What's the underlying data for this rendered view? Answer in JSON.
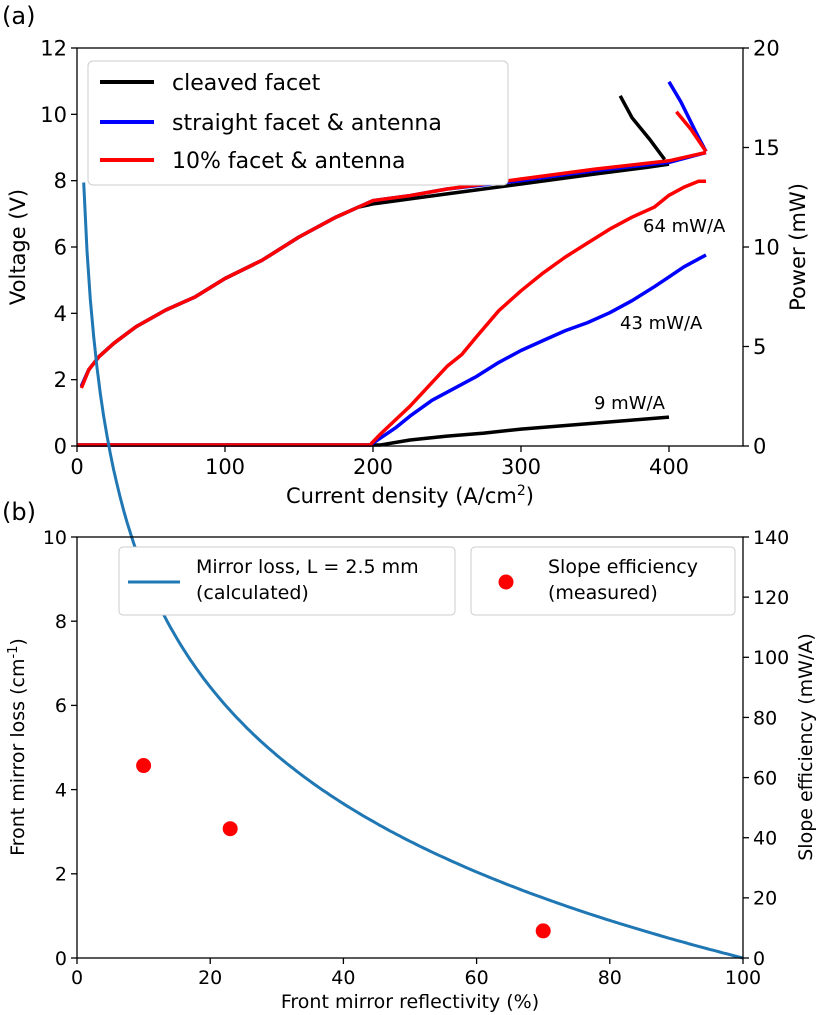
{
  "chart_data": [
    {
      "type": "line",
      "panel_label": "(a)",
      "xlabel": "Current density (A/cm",
      "xlabel_sup": "2",
      "xlabel_end": ")",
      "ylabel_left": "Voltage (V)",
      "ylabel_right": "Power (mW)",
      "xlim": [
        0,
        450
      ],
      "ylim_left": [
        0,
        12
      ],
      "ylim_right": [
        0,
        20
      ],
      "x_ticks": [
        0,
        100,
        200,
        300,
        400
      ],
      "y_ticks_left": [
        0,
        2,
        4,
        6,
        8,
        10,
        12
      ],
      "y_ticks_right": [
        0,
        5,
        10,
        15,
        20
      ],
      "legend": [
        {
          "label": "cleaved facet",
          "color": "#000000"
        },
        {
          "label": "straight facet & antenna",
          "color": "#0000ff"
        },
        {
          "label": "10% facet & antenna",
          "color": "#ff0000"
        }
      ],
      "annotations": [
        "64 mW/A",
        "43 mW/A",
        "9 mW/A"
      ],
      "series": [
        {
          "name": "cleaved facet (voltage)",
          "axis": "left",
          "color": "#000000",
          "points": [
            [
              3,
              1.8
            ],
            [
              8,
              2.3
            ],
            [
              15,
              2.7
            ],
            [
              25,
              3.1
            ],
            [
              40,
              3.6
            ],
            [
              60,
              4.1
            ],
            [
              80,
              4.5
            ],
            [
              100,
              5.05
            ],
            [
              125,
              5.6
            ],
            [
              150,
              6.3
            ],
            [
              175,
              6.9
            ],
            [
              190,
              7.2
            ],
            [
              200,
              7.3
            ],
            [
              225,
              7.45
            ],
            [
              250,
              7.6
            ],
            [
              300,
              7.9
            ],
            [
              350,
              8.2
            ],
            [
              385,
              8.4
            ],
            [
              400,
              8.5
            ]
          ]
        },
        {
          "name": "straight facet & antenna (voltage)",
          "axis": "left",
          "color": "#0000ff",
          "points": [
            [
              3,
              1.8
            ],
            [
              8,
              2.3
            ],
            [
              15,
              2.7
            ],
            [
              25,
              3.1
            ],
            [
              40,
              3.6
            ],
            [
              60,
              4.1
            ],
            [
              80,
              4.5
            ],
            [
              100,
              5.05
            ],
            [
              125,
              5.6
            ],
            [
              150,
              6.3
            ],
            [
              175,
              6.9
            ],
            [
              190,
              7.2
            ],
            [
              200,
              7.4
            ],
            [
              225,
              7.55
            ],
            [
              250,
              7.75
            ],
            [
              300,
              8.0
            ],
            [
              350,
              8.3
            ],
            [
              400,
              8.55
            ],
            [
              425,
              8.85
            ]
          ]
        },
        {
          "name": "10% facet & antenna (voltage)",
          "axis": "left",
          "color": "#ff0000",
          "points": [
            [
              3,
              1.75
            ],
            [
              8,
              2.3
            ],
            [
              15,
              2.7
            ],
            [
              25,
              3.1
            ],
            [
              40,
              3.6
            ],
            [
              60,
              4.1
            ],
            [
              80,
              4.5
            ],
            [
              100,
              5.05
            ],
            [
              125,
              5.6
            ],
            [
              150,
              6.3
            ],
            [
              175,
              6.9
            ],
            [
              190,
              7.2
            ],
            [
              200,
              7.4
            ],
            [
              225,
              7.55
            ],
            [
              250,
              7.75
            ],
            [
              300,
              8.05
            ],
            [
              350,
              8.35
            ],
            [
              400,
              8.6
            ],
            [
              425,
              8.85
            ]
          ]
        },
        {
          "name": "cleaved facet (power)",
          "axis": "right",
          "color": "#000000",
          "points": [
            [
              0,
              0.05
            ],
            [
              195,
              0.05
            ],
            [
              205,
              0.05
            ],
            [
              225,
              0.3
            ],
            [
              250,
              0.5
            ],
            [
              275,
              0.65
            ],
            [
              300,
              0.85
            ],
            [
              325,
              1.0
            ],
            [
              350,
              1.15
            ],
            [
              375,
              1.3
            ],
            [
              400,
              1.45
            ]
          ]
        },
        {
          "name": "straight facet & antenna (power)",
          "axis": "right",
          "color": "#0000ff",
          "points": [
            [
              0,
              0.05
            ],
            [
              198,
              0.05
            ],
            [
              205,
              0.4
            ],
            [
              215,
              0.9
            ],
            [
              225,
              1.5
            ],
            [
              240,
              2.3
            ],
            [
              255,
              2.9
            ],
            [
              270,
              3.5
            ],
            [
              285,
              4.2
            ],
            [
              300,
              4.8
            ],
            [
              315,
              5.3
            ],
            [
              330,
              5.8
            ],
            [
              345,
              6.2
            ],
            [
              360,
              6.7
            ],
            [
              375,
              7.3
            ],
            [
              390,
              8.0
            ],
            [
              400,
              8.5
            ],
            [
              410,
              9.0
            ],
            [
              420,
              9.4
            ],
            [
              425,
              9.6
            ]
          ]
        },
        {
          "name": "10% facet & antenna (power)",
          "axis": "right",
          "color": "#ff0000",
          "points": [
            [
              0,
              0.05
            ],
            [
              198,
              0.05
            ],
            [
              205,
              0.6
            ],
            [
              215,
              1.3
            ],
            [
              225,
              2.0
            ],
            [
              240,
              3.2
            ],
            [
              250,
              4.0
            ],
            [
              260,
              4.6
            ],
            [
              270,
              5.5
            ],
            [
              285,
              6.8
            ],
            [
              300,
              7.8
            ],
            [
              315,
              8.7
            ],
            [
              330,
              9.5
            ],
            [
              345,
              10.2
            ],
            [
              360,
              10.9
            ],
            [
              375,
              11.5
            ],
            [
              390,
              12.0
            ],
            [
              400,
              12.6
            ],
            [
              410,
              13.0
            ],
            [
              420,
              13.3
            ],
            [
              425,
              13.3
            ]
          ]
        }
      ],
      "rollover": [
        {
          "color": "#000000",
          "points": [
            [
              367,
              17.6
            ],
            [
              375,
              16.5
            ],
            [
              387,
              15.4
            ],
            [
              397,
              14.4
            ]
          ]
        },
        {
          "color": "#0000ff",
          "points": [
            [
              400,
              18.3
            ],
            [
              408,
              17.3
            ],
            [
              418,
              15.8
            ],
            [
              425,
              14.8
            ]
          ]
        },
        {
          "color": "#ff0000",
          "points": [
            [
              405,
              16.8
            ],
            [
              415,
              15.9
            ],
            [
              425,
              14.8
            ]
          ]
        }
      ]
    },
    {
      "type": "line+scatter",
      "panel_label": "(b)",
      "xlabel": "Front mirror reflectivity (%)",
      "ylabel_left": "Front mirror loss (cm",
      "ylabel_left_sup": "-1",
      "ylabel_left_end": ")",
      "ylabel_right": "Slope efficiency (mW/A)",
      "xlim": [
        0,
        100
      ],
      "ylim_left": [
        0,
        10
      ],
      "ylim_right": [
        0,
        140
      ],
      "x_ticks": [
        0,
        20,
        40,
        60,
        80,
        100
      ],
      "y_ticks_left": [
        0,
        2,
        4,
        6,
        8,
        10
      ],
      "y_ticks_right": [
        0,
        20,
        40,
        60,
        80,
        100,
        120,
        140
      ],
      "legend": [
        {
          "label": "Mirror loss, L = 2.5 mm",
          "label2": "(calculated)",
          "color": "#1f77b4",
          "marker": "line"
        },
        {
          "label": "Slope efficiency",
          "label2": "(measured)",
          "color": "#ff0000",
          "marker": "dot"
        }
      ],
      "mirror_loss_curve": {
        "formula": "-ln(R)/L",
        "L_cm": 0.25,
        "x_start": 1,
        "x_end": 100
      },
      "slope_efficiency_points": [
        {
          "x": 10,
          "y": 64
        },
        {
          "x": 23,
          "y": 43
        },
        {
          "x": 70,
          "y": 9
        }
      ]
    }
  ]
}
